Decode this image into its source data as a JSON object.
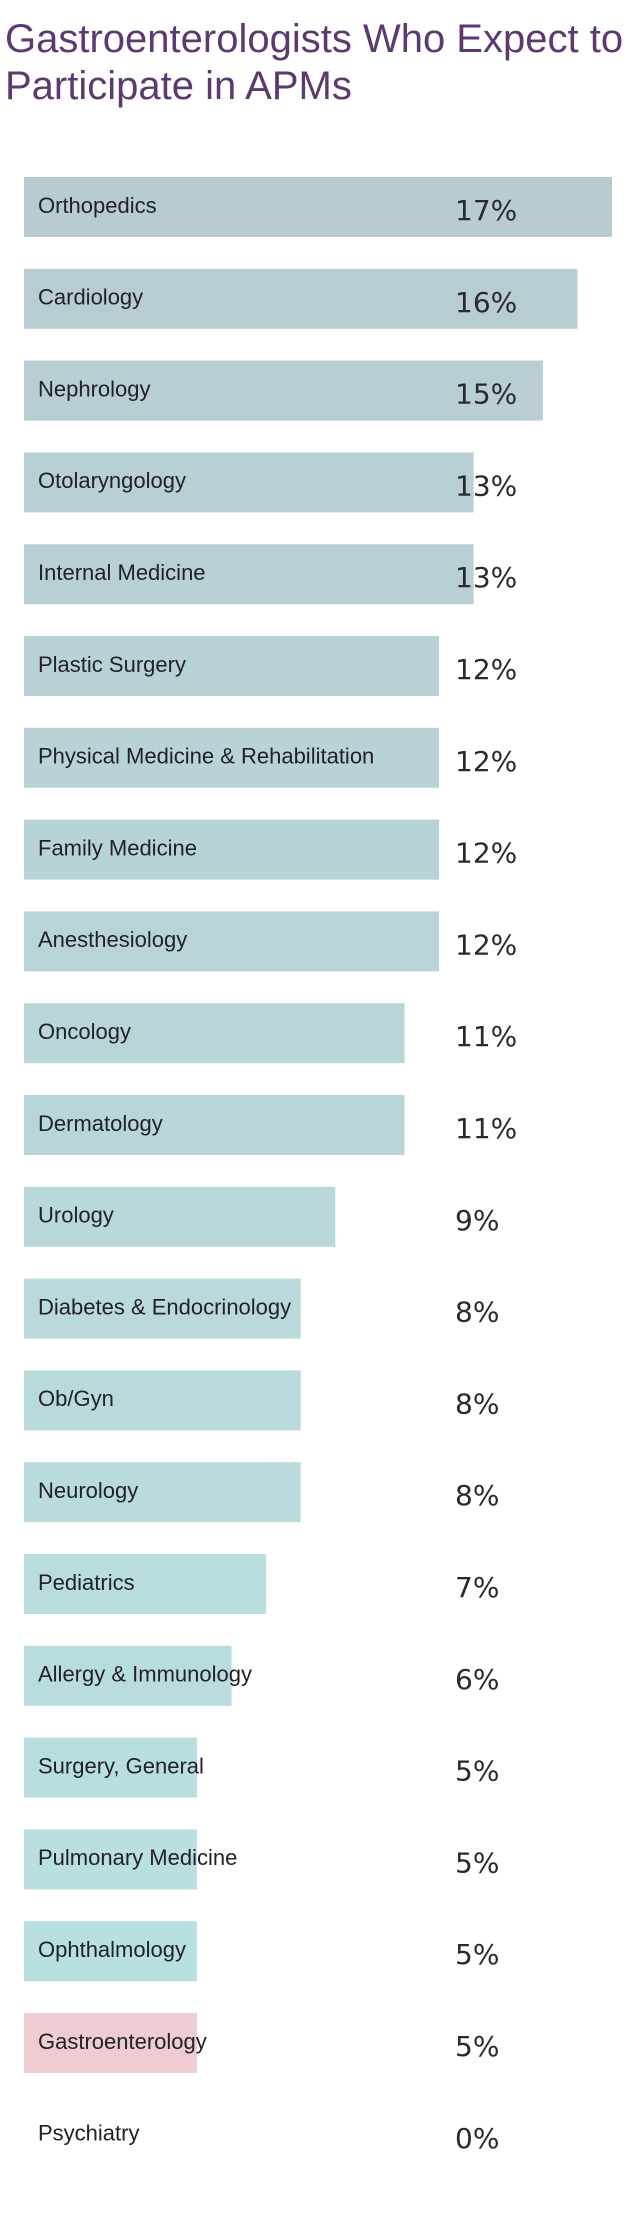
{
  "chart_data": {
    "type": "bar",
    "orientation": "horizontal",
    "title": "Gastroenterologists Who Expect to Participate in APMs",
    "xlabel": "",
    "ylabel": "",
    "value_suffix": "%",
    "xlim": [
      0,
      17
    ],
    "grid": false,
    "legend": "none",
    "categories": [
      "Orthopedics",
      "Cardiology",
      "Nephrology",
      "Otolaryngology",
      "Internal Medicine",
      "Plastic Surgery",
      "Physical Medicine & Rehabilitation",
      "Family Medicine",
      "Anesthesiology",
      "Oncology",
      "Dermatology",
      "Urology",
      "Diabetes & Endocrinology",
      "Ob/Gyn",
      "Neurology",
      "Pediatrics",
      "Allergy & Immunology",
      "Surgery, General",
      "Pulmonary Medicine",
      "Ophthalmology",
      "Gastroenterology",
      "Psychiatry"
    ],
    "values": [
      17,
      16,
      15,
      13,
      13,
      12,
      12,
      12,
      12,
      11,
      11,
      9,
      8,
      8,
      8,
      7,
      6,
      5,
      5,
      5,
      5,
      0
    ],
    "highlight_category": "Gastroenterology",
    "colors": {
      "bar_top": "#b8ccd0",
      "bar_bottom": "#b9e2e2",
      "highlight_bar": "#efcbd2",
      "highlight_text": "#c24f7a",
      "title": "#5c3a6f",
      "text": "#222222"
    }
  }
}
